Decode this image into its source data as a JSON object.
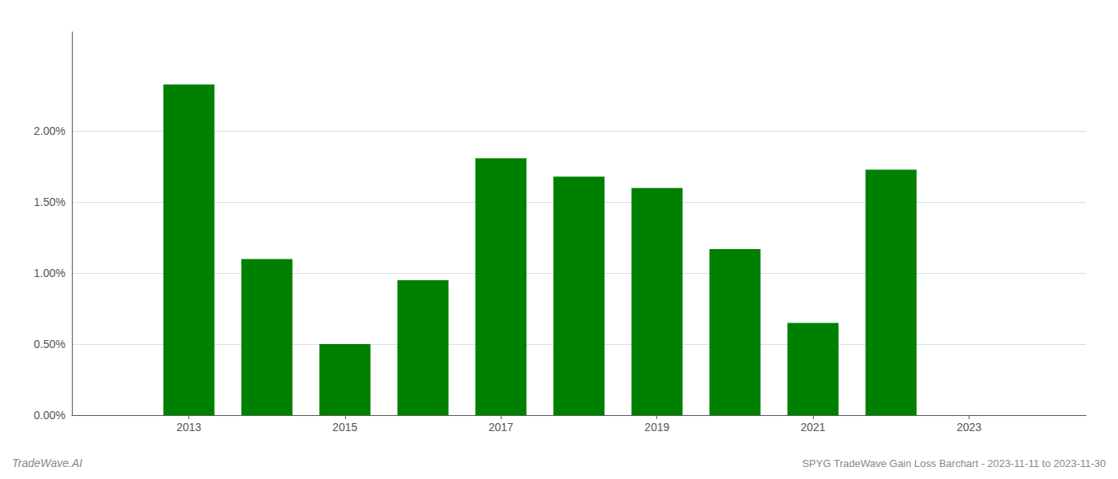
{
  "chart_data": {
    "type": "bar",
    "title": "SPYG TradeWave Gain Loss Barchart - 2023-11-11 to 2023-11-30",
    "annotations": [
      "TradeWave.AI"
    ],
    "x": [
      2013,
      2014,
      2015,
      2016,
      2017,
      2018,
      2019,
      2020,
      2021,
      2022
    ],
    "values": [
      0.0233,
      0.011,
      0.005,
      0.0095,
      0.0181,
      0.0168,
      0.016,
      0.0117,
      0.0065,
      0.0173
    ],
    "color": "#008000",
    "xlim": [
      2011.5,
      2024.5
    ],
    "xticks": [
      2013,
      2015,
      2017,
      2019,
      2021,
      2023
    ],
    "ylim": [
      0,
      0.027
    ],
    "yticks": [
      {
        "value": 0.0,
        "label": "0.00%"
      },
      {
        "value": 0.005,
        "label": "0.50%"
      },
      {
        "value": 0.01,
        "label": "1.00%"
      },
      {
        "value": 0.015,
        "label": "1.50%"
      },
      {
        "value": 0.02,
        "label": "2.00%"
      }
    ],
    "grid": true
  }
}
